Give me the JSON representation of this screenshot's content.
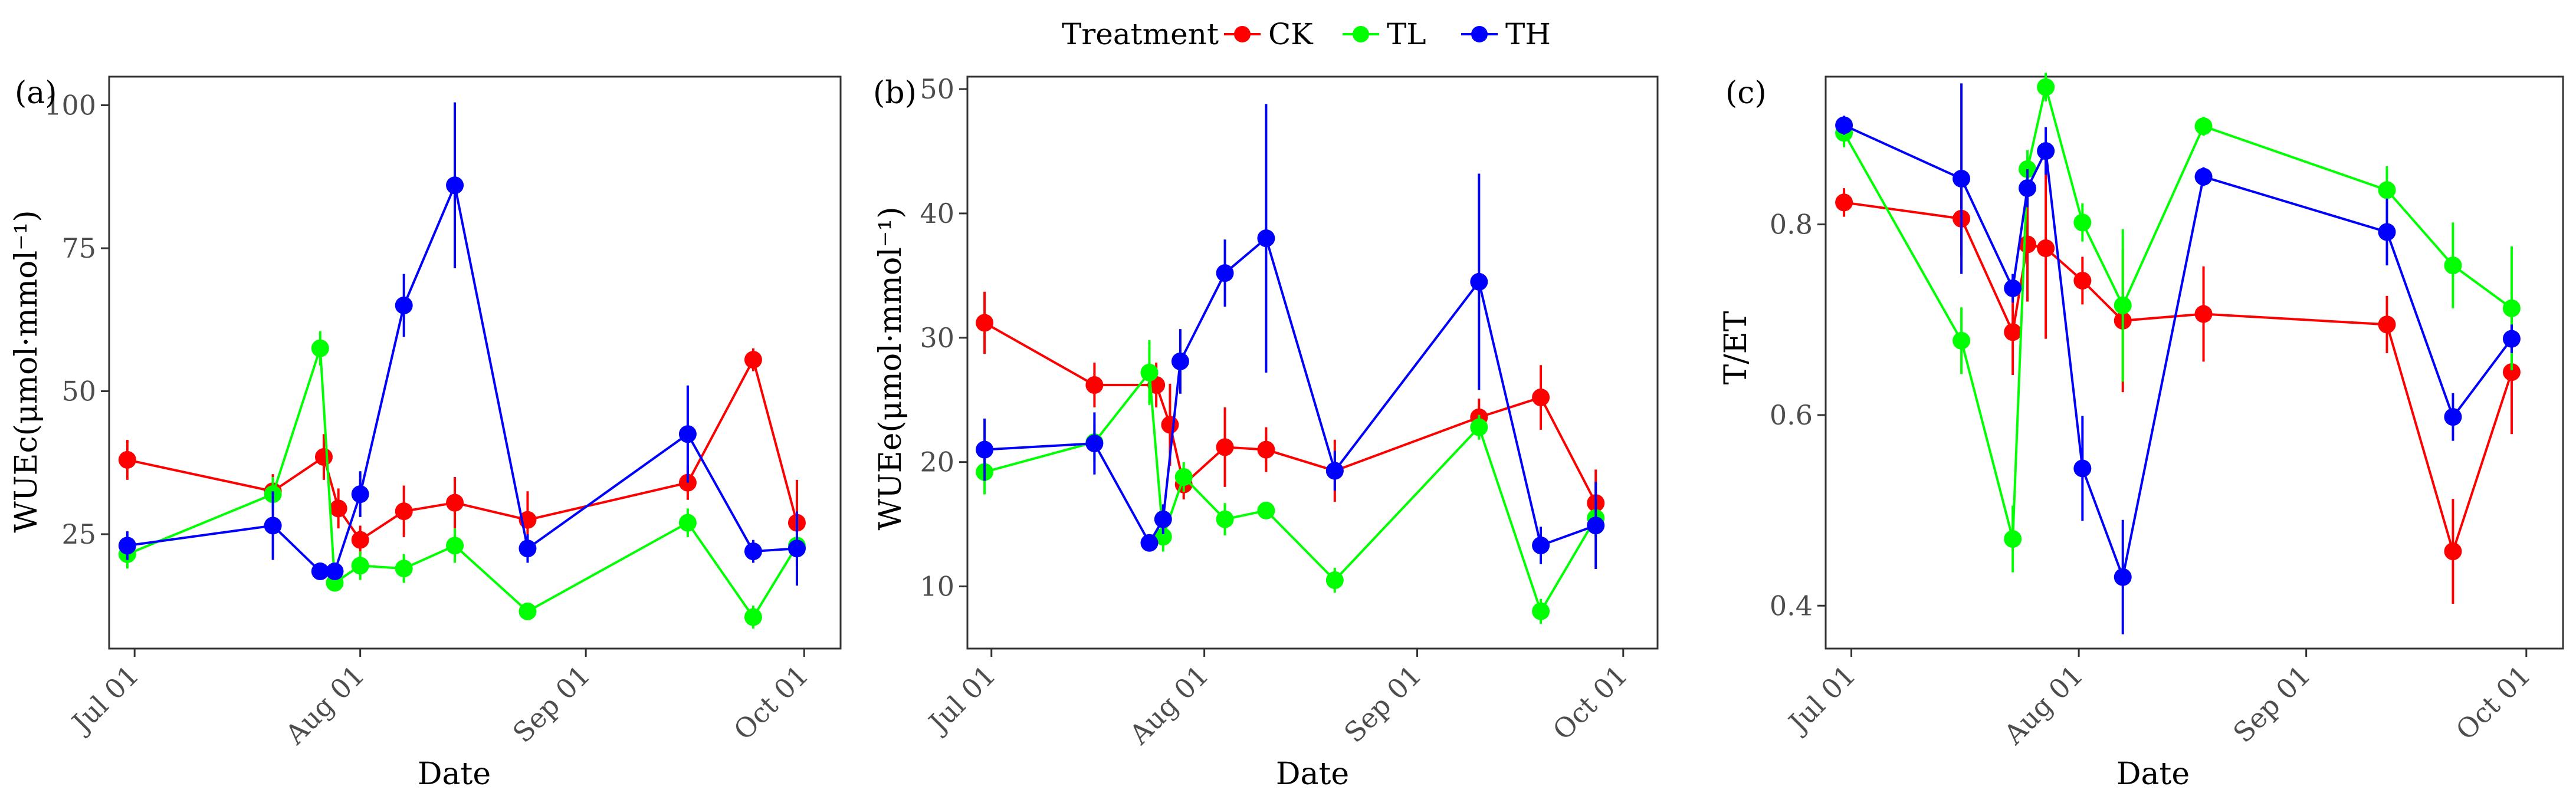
{
  "legend": {
    "title": "Treatment",
    "entries": [
      {
        "name": "CK",
        "color": "#ff0000"
      },
      {
        "name": "TL",
        "color": "#00ff00"
      },
      {
        "name": "TH",
        "color": "#0000ff"
      }
    ]
  },
  "chart_data": [
    {
      "type": "line",
      "panel_label": "(a)",
      "xlabel": "Date",
      "ylabel": "WUEc(μmol·mmol⁻¹)",
      "xlim": [
        -3.5,
        97
      ],
      "ylim": [
        5,
        105
      ],
      "yticks": [
        25,
        50,
        75,
        100
      ],
      "xticks": [
        {
          "day": 0,
          "label": "Jul 01"
        },
        {
          "day": 31,
          "label": "Aug 01"
        },
        {
          "day": 62,
          "label": "Sep 01"
        },
        {
          "day": 92,
          "label": "Oct 01"
        }
      ],
      "series": [
        {
          "name": "CK",
          "color": "#ff0000",
          "x": [
            -1,
            19,
            26,
            28,
            31,
            37,
            44,
            54,
            76,
            85,
            91
          ],
          "y": [
            38,
            32.5,
            38.5,
            29.5,
            24,
            29,
            30.5,
            27.5,
            34,
            55.5,
            27
          ],
          "err": [
            3.5,
            3,
            4,
            3.5,
            2.5,
            4.5,
            4.5,
            5,
            3,
            2,
            7.5
          ]
        },
        {
          "name": "TL",
          "color": "#00ff00",
          "x": [
            -1,
            19,
            25.5,
            27.5,
            31,
            37,
            44,
            54,
            76,
            85,
            91
          ],
          "y": [
            21.5,
            32,
            57.5,
            16.5,
            19.5,
            19,
            23,
            11.5,
            27,
            10.5,
            23
          ],
          "err": [
            2.5,
            3,
            3,
            1.5,
            2.5,
            2.5,
            3,
            1,
            2.5,
            2,
            2.5
          ]
        },
        {
          "name": "TH",
          "color": "#0000ff",
          "x": [
            -1,
            19,
            25.5,
            27.5,
            31,
            37,
            44,
            54,
            76,
            85,
            91
          ],
          "y": [
            23,
            26.5,
            18.5,
            18.5,
            32,
            65,
            86,
            22.5,
            42.5,
            22,
            22.5
          ],
          "err": [
            2.5,
            6,
            1.5,
            1.5,
            4,
            5.5,
            14.5,
            2.5,
            8.5,
            2,
            6.5
          ]
        }
      ]
    },
    {
      "type": "line",
      "panel_label": "(b)",
      "xlabel": "Date",
      "ylabel": "WUEe(μmol·mmol⁻¹)",
      "xlim": [
        -3.5,
        97
      ],
      "ylim": [
        5,
        51
      ],
      "yticks": [
        10,
        20,
        30,
        40,
        50
      ],
      "xticks": [
        {
          "day": 0,
          "label": "Jul 01"
        },
        {
          "day": 31,
          "label": "Aug 01"
        },
        {
          "day": 62,
          "label": "Sep 01"
        },
        {
          "day": 92,
          "label": "Oct 01"
        }
      ],
      "series": [
        {
          "name": "CK",
          "color": "#ff0000",
          "x": [
            -1,
            15,
            24,
            26,
            28,
            34,
            40,
            50,
            71,
            80,
            88
          ],
          "y": [
            31.2,
            26.2,
            26.2,
            23,
            18.2,
            21.2,
            21,
            19.3,
            23.6,
            25.2,
            16.7
          ],
          "err": [
            2.5,
            1.8,
            1.8,
            3.3,
            1.2,
            3.2,
            1.8,
            2.5,
            1.5,
            2.6,
            2.7
          ]
        },
        {
          "name": "TL",
          "color": "#00ff00",
          "x": [
            -1,
            15,
            23,
            25,
            28,
            34,
            40,
            50,
            71,
            80,
            88
          ],
          "y": [
            19.2,
            21.6,
            27.2,
            14,
            18.8,
            15.4,
            16.1,
            10.5,
            22.8,
            8,
            15.5
          ],
          "err": [
            1.8,
            1.5,
            2.6,
            1.2,
            1.2,
            1.3,
            0.7,
            1,
            1,
            1,
            1.5
          ]
        },
        {
          "name": "TH",
          "color": "#0000ff",
          "x": [
            -1,
            15,
            23,
            25,
            27.5,
            34,
            40,
            50,
            71,
            80,
            88
          ],
          "y": [
            21,
            21.5,
            13.5,
            15.4,
            28.1,
            35.2,
            38,
            19.3,
            34.5,
            13.3,
            14.9
          ],
          "err": [
            2.5,
            2.5,
            0.6,
            1.2,
            2.6,
            2.7,
            10.8,
            1.6,
            8.7,
            1.5,
            3.5
          ]
        }
      ]
    },
    {
      "type": "line",
      "panel_label": "(c)",
      "xlabel": "Date",
      "ylabel": "T/ET",
      "xlim": [
        -3.5,
        97
      ],
      "ylim": [
        0.355,
        0.955
      ],
      "yticks": [
        0.4,
        0.6,
        0.8
      ],
      "xticks": [
        {
          "day": 0,
          "label": "Jul 01"
        },
        {
          "day": 31,
          "label": "Aug 01"
        },
        {
          "day": 62,
          "label": "Sep 01"
        },
        {
          "day": 92,
          "label": "Oct 01"
        }
      ],
      "series": [
        {
          "name": "CK",
          "color": "#ff0000",
          "x": [
            -1,
            15,
            22,
            24,
            26.5,
            31.5,
            37,
            48,
            73,
            82,
            90
          ],
          "y": [
            0.823,
            0.806,
            0.687,
            0.779,
            0.775,
            0.741,
            0.699,
            0.706,
            0.695,
            0.457,
            0.645
          ],
          "err": [
            0.015,
            0.04,
            0.045,
            0.06,
            0.095,
            0.025,
            0.075,
            0.05,
            0.03,
            0.055,
            0.065
          ]
        },
        {
          "name": "TL",
          "color": "#00ff00",
          "x": [
            -1,
            15,
            22,
            24,
            26.5,
            31.5,
            37,
            48,
            73,
            82,
            90
          ],
          "y": [
            0.896,
            0.678,
            0.47,
            0.858,
            0.944,
            0.802,
            0.715,
            0.903,
            0.836,
            0.757,
            0.712
          ],
          "err": [
            0.015,
            0.035,
            0.035,
            0.02,
            0.015,
            0.02,
            0.08,
            0.01,
            0.025,
            0.045,
            0.065
          ]
        },
        {
          "name": "TH",
          "color": "#0000ff",
          "x": [
            -1,
            15,
            22,
            24,
            26.5,
            31.5,
            37,
            48,
            73,
            82,
            90
          ],
          "y": [
            0.904,
            0.848,
            0.733,
            0.838,
            0.877,
            0.544,
            0.43,
            0.85,
            0.792,
            0.598,
            0.68
          ],
          "err": [
            0.01,
            0.1,
            0.015,
            0.02,
            0.025,
            0.055,
            0.06,
            0.01,
            0.035,
            0.025,
            0.015
          ]
        }
      ]
    }
  ]
}
